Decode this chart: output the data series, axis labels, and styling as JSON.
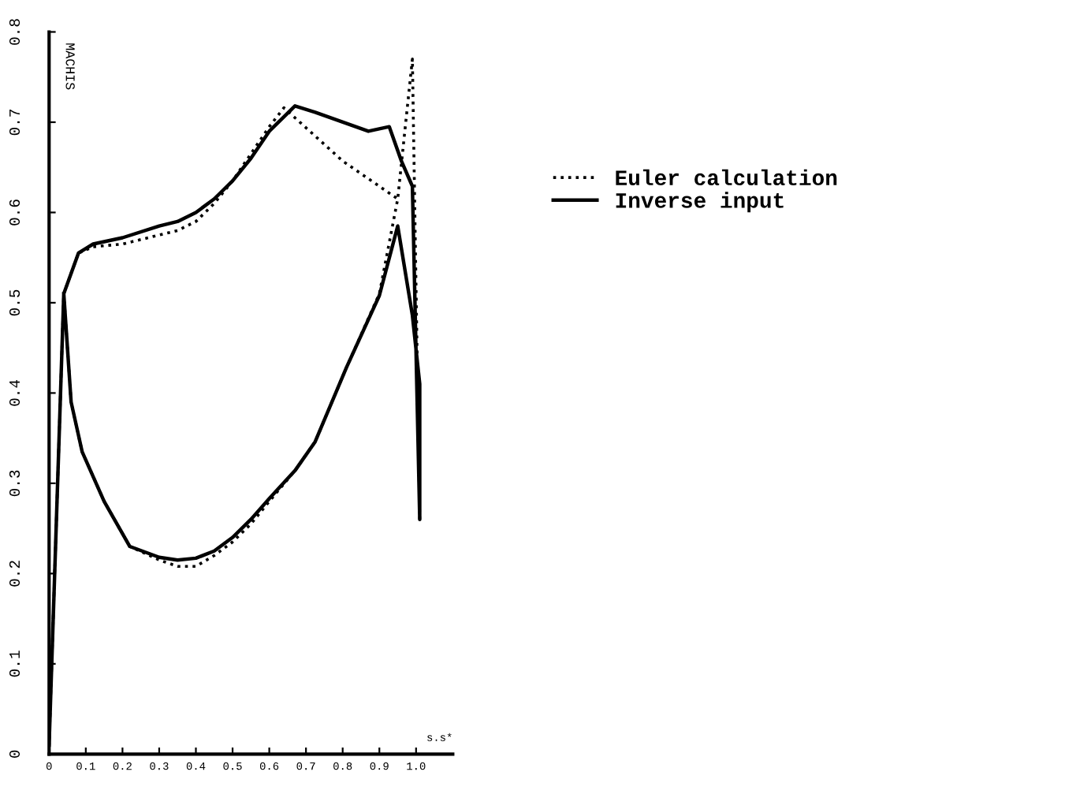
{
  "chart_data": {
    "type": "line",
    "ylabel": "MACHIS",
    "xlabel": "s.s*",
    "xlim": [
      0,
      1.1
    ],
    "ylim": [
      0,
      0.8
    ],
    "xticks": [
      0,
      0.1,
      0.2,
      0.3,
      0.4,
      0.5,
      0.6,
      0.7,
      0.8,
      0.9,
      {
        "value": 1,
        "label": "1.0"
      }
    ],
    "yticks": [
      0,
      0.1,
      0.2,
      0.3,
      0.4,
      0.5,
      0.6,
      0.7,
      0.8
    ],
    "grid": false,
    "legend": "right",
    "marker": "none",
    "series": [
      {
        "name": "Euler calculation",
        "color": "#000000",
        "line_style": "dotted",
        "x": [
          1.01,
          0.99,
          0.95,
          0.9,
          0.81,
          0.725,
          0.67,
          0.6,
          0.55,
          0.5,
          0.45,
          0.4,
          0.35,
          0.3,
          0.22,
          0.15,
          0.09,
          0.06,
          0.04,
          0.0,
          0.04,
          0.08,
          0.12,
          0.2,
          0.3,
          0.35,
          0.4,
          0.45,
          0.5,
          0.55,
          0.6,
          0.64,
          0.8,
          0.95
        ],
        "values": [
          0.26,
          0.77,
          0.615,
          0.51,
          0.428,
          0.346,
          0.314,
          0.28,
          0.255,
          0.235,
          0.22,
          0.208,
          0.208,
          0.215,
          0.23,
          0.28,
          0.335,
          0.39,
          0.51,
          0.01,
          0.51,
          0.555,
          0.562,
          0.565,
          0.575,
          0.58,
          0.59,
          0.61,
          0.635,
          0.665,
          0.695,
          0.716,
          0.657,
          0.615
        ]
      },
      {
        "name": "Inverse input",
        "color": "#000000",
        "line_style": "solid",
        "x": [
          0.0,
          0.04,
          0.08,
          0.12,
          0.2,
          0.3,
          0.35,
          0.4,
          0.45,
          0.5,
          0.55,
          0.6,
          0.67,
          0.725,
          0.87,
          0.927,
          0.96,
          0.99,
          1.01,
          1.01,
          0.99,
          0.95,
          0.9,
          0.81,
          0.725,
          0.67,
          0.6,
          0.55,
          0.5,
          0.45,
          0.4,
          0.35,
          0.3,
          0.22,
          0.15,
          0.09,
          0.06,
          0.04
        ],
        "values": [
          0.01,
          0.51,
          0.555,
          0.565,
          0.572,
          0.585,
          0.59,
          0.6,
          0.615,
          0.635,
          0.66,
          0.69,
          0.718,
          0.711,
          0.69,
          0.695,
          0.657,
          0.629,
          0.26,
          0.41,
          0.486,
          0.585,
          0.508,
          0.428,
          0.346,
          0.314,
          0.283,
          0.26,
          0.24,
          0.225,
          0.217,
          0.215,
          0.218,
          0.23,
          0.28,
          0.335,
          0.39,
          0.51
        ]
      }
    ]
  }
}
